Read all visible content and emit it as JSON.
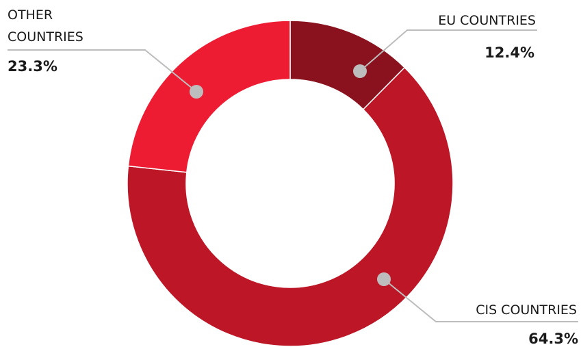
{
  "chart_data": {
    "type": "pie",
    "variant": "donut",
    "title": "",
    "categories": [
      "EU COUNTRIES",
      "CIS COUNTRIES",
      "OTHER COUNTRIES"
    ],
    "values": [
      12.4,
      64.3,
      23.3
    ],
    "value_labels": [
      "12.4%",
      "64.3%",
      "23.3%"
    ],
    "colors": [
      "#8a111e",
      "#bd1727",
      "#ee1c33"
    ],
    "label_lines": [
      [
        "EU COUNTRIES"
      ],
      [
        "CIS COUNTRIES"
      ],
      [
        "OTHER",
        "COUNTRIES"
      ]
    ],
    "legend": "none",
    "leader_color": "#bdbdbd"
  }
}
